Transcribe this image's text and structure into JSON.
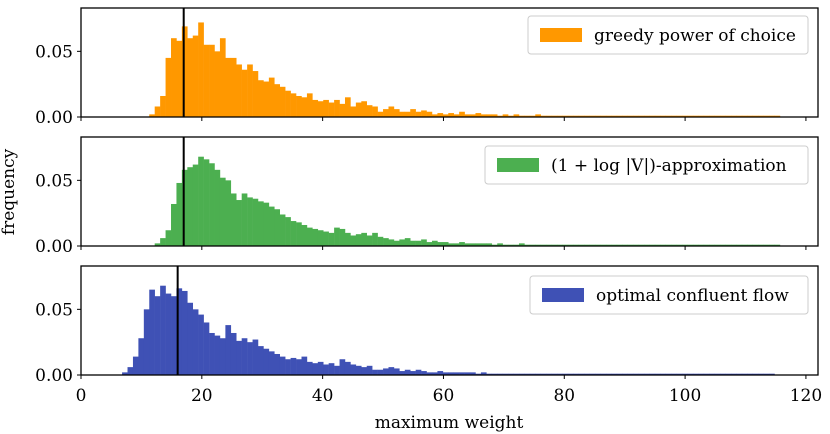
{
  "chart_data": {
    "type": "histogram",
    "xlabel": "maximum weight",
    "ylabel": "frequency",
    "xlim": [
      0,
      122
    ],
    "ylim": [
      0,
      0.083
    ],
    "xticks": [
      0,
      20,
      40,
      60,
      80,
      100,
      120
    ],
    "xtick_labels": [
      "0",
      "20",
      "40",
      "60",
      "80",
      "100",
      "120"
    ],
    "yticks": [
      0,
      0.05
    ],
    "ytick_labels": [
      "0.00",
      "0.05"
    ],
    "bin_start": 5,
    "bin_width": 0.9,
    "panels": [
      {
        "name": "greedy power of choice",
        "legend": "greedy power of choice",
        "color": "#ff9800",
        "median": 17,
        "values": [
          0,
          0,
          0,
          0,
          0,
          0,
          0,
          0.002,
          0.008,
          0.016,
          0.045,
          0.06,
          0.058,
          0.069,
          0.06,
          0.062,
          0.072,
          0.055,
          0.055,
          0.05,
          0.06,
          0.045,
          0.045,
          0.04,
          0.036,
          0.04,
          0.035,
          0.028,
          0.027,
          0.03,
          0.025,
          0.023,
          0.02,
          0.018,
          0.016,
          0.015,
          0.018,
          0.013,
          0.012,
          0.013,
          0.011,
          0.013,
          0.01,
          0.015,
          0.008,
          0.011,
          0.012,
          0.009,
          0.008,
          0.004,
          0.006,
          0.008,
          0.006,
          0.004,
          0.004,
          0.006,
          0.004,
          0.005,
          0.004,
          0.002,
          0.003,
          0.002,
          0.003,
          0.002,
          0.004,
          0.002,
          0.002,
          0.003,
          0.002,
          0.002,
          0.002,
          0.001,
          0.002,
          0.001,
          0.002,
          0.001,
          0.001,
          0.001,
          0.002,
          0.001,
          0.001,
          0.001,
          0.001,
          0.001,
          0.001,
          0.001,
          0.001,
          0.001,
          0.001,
          0.001,
          0.001,
          0.001,
          0.001,
          0.001,
          0.001,
          0.001,
          0.001,
          0.001,
          0.001,
          0.001,
          0.001,
          0.001,
          0.001,
          0.001,
          0.001,
          0.001,
          0.001,
          0.001,
          0.001,
          0.001,
          0.001,
          0.001,
          0.001,
          0.001,
          0.001,
          0.001,
          0.001,
          0.001,
          0.001,
          0.001,
          0.001,
          0.001,
          0.001
        ]
      },
      {
        "name": "(1 + log |V|)-approximation",
        "legend": "(1 + log |V|)-approximation",
        "color": "#4caf50",
        "median": 17,
        "values": [
          0,
          0,
          0,
          0,
          0,
          0,
          0,
          0,
          0.002,
          0.006,
          0.012,
          0.032,
          0.048,
          0.058,
          0.06,
          0.062,
          0.068,
          0.066,
          0.063,
          0.058,
          0.052,
          0.05,
          0.04,
          0.035,
          0.04,
          0.037,
          0.036,
          0.034,
          0.033,
          0.03,
          0.028,
          0.024,
          0.022,
          0.019,
          0.018,
          0.016,
          0.014,
          0.013,
          0.012,
          0.011,
          0.01,
          0.014,
          0.013,
          0.01,
          0.008,
          0.009,
          0.01,
          0.008,
          0.01,
          0.007,
          0.006,
          0.005,
          0.004,
          0.005,
          0.006,
          0.004,
          0.004,
          0.005,
          0.003,
          0.004,
          0.003,
          0.003,
          0.002,
          0.002,
          0.003,
          0.002,
          0.002,
          0.002,
          0.002,
          0.002,
          0.001,
          0.002,
          0.001,
          0.001,
          0.001,
          0.002,
          0.001,
          0.001,
          0.001,
          0.001,
          0.001,
          0.001,
          0.001,
          0.001,
          0.001,
          0.001,
          0.001,
          0.001,
          0.001,
          0.001,
          0.001,
          0.001,
          0.001,
          0.001,
          0.001,
          0.001,
          0.001,
          0.001,
          0.001,
          0.001,
          0.001,
          0.001,
          0.001,
          0.001,
          0.001,
          0.001,
          0.001,
          0.001,
          0.001,
          0.001,
          0.001,
          0.001,
          0.001,
          0.001,
          0.001,
          0.001,
          0.001,
          0.001,
          0.001,
          0.001,
          0.001,
          0.001,
          0.001
        ]
      },
      {
        "name": "optimal confluent flow",
        "legend": "optimal confluent flow",
        "color": "#3f51b5",
        "median": 16,
        "values": [
          0,
          0,
          0.002,
          0.006,
          0.014,
          0.028,
          0.05,
          0.065,
          0.06,
          0.068,
          0.062,
          0.06,
          0.066,
          0.064,
          0.055,
          0.05,
          0.046,
          0.04,
          0.032,
          0.03,
          0.028,
          0.038,
          0.032,
          0.026,
          0.028,
          0.025,
          0.027,
          0.022,
          0.02,
          0.018,
          0.016,
          0.014,
          0.012,
          0.013,
          0.012,
          0.014,
          0.01,
          0.009,
          0.01,
          0.008,
          0.009,
          0.007,
          0.012,
          0.01,
          0.008,
          0.007,
          0.006,
          0.007,
          0.004,
          0.004,
          0.005,
          0.006,
          0.005,
          0.003,
          0.004,
          0.003,
          0.004,
          0.003,
          0.002,
          0.002,
          0.003,
          0.002,
          0.002,
          0.002,
          0.002,
          0.002,
          0.002,
          0.001,
          0.002,
          0.001,
          0.001,
          0.001,
          0.001,
          0.001,
          0.001,
          0.001,
          0.001,
          0.001,
          0.001,
          0.001,
          0.001,
          0.001,
          0.001,
          0.001,
          0.001,
          0.001,
          0.001,
          0.001,
          0.001,
          0.001,
          0.001,
          0.001,
          0.001,
          0.001,
          0.001,
          0.001,
          0.001,
          0.001,
          0.001,
          0.001,
          0.001,
          0.001,
          0.001,
          0.001,
          0.001,
          0.001,
          0.001,
          0.001,
          0.001,
          0.001,
          0.001,
          0.001,
          0.001,
          0.001,
          0.001,
          0.001,
          0.001,
          0.001,
          0.001,
          0.001,
          0.001,
          0.001
        ]
      }
    ]
  }
}
